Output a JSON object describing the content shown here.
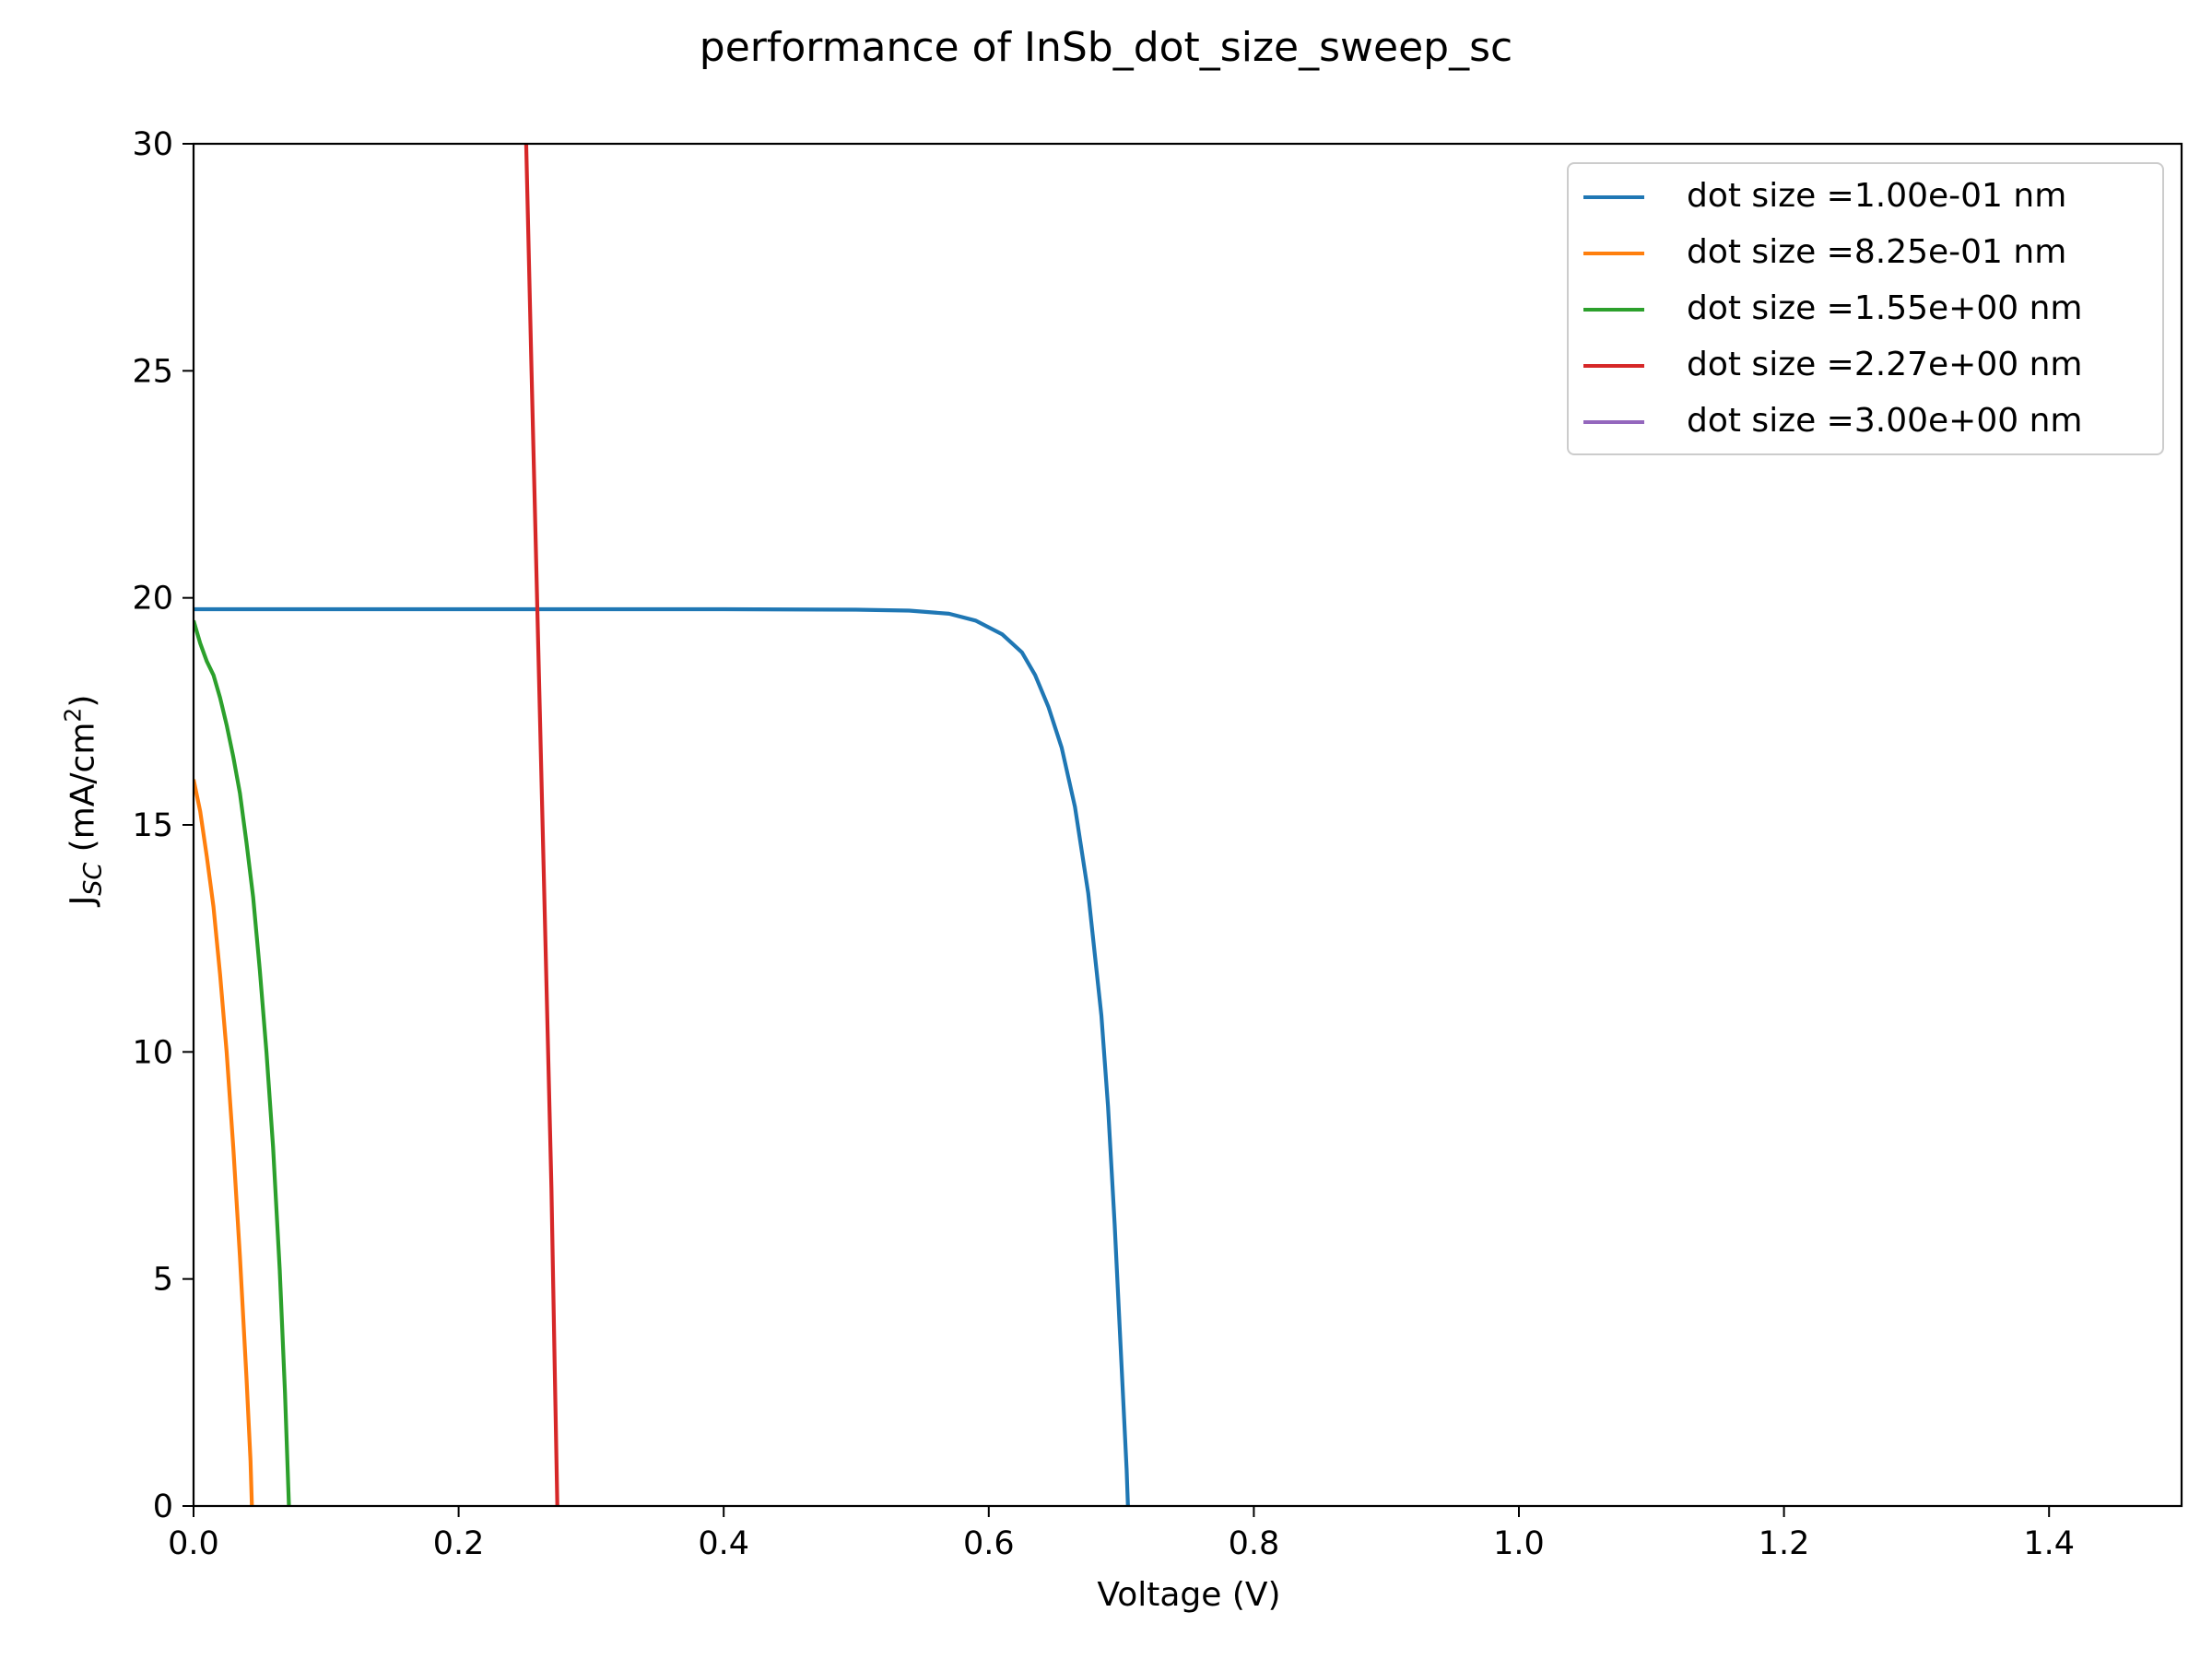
{
  "chart_data": {
    "type": "line",
    "title": "performance of InSb_dot_size_sweep_sc",
    "xlabel": "Voltage (V)",
    "ylabel": {
      "main": "J",
      "sub": "SC",
      "rest": " (mA/cm",
      "sup": "2",
      "close": ")"
    },
    "xlim": [
      0.0,
      1.5
    ],
    "ylim": [
      0,
      30
    ],
    "xticks": [
      "0.0",
      "0.2",
      "0.4",
      "0.6",
      "0.8",
      "1.0",
      "1.2",
      "1.4"
    ],
    "xtick_values": [
      0.0,
      0.2,
      0.4,
      0.6,
      0.8,
      1.0,
      1.2,
      1.4
    ],
    "yticks": [
      "0",
      "5",
      "10",
      "15",
      "20",
      "25",
      "30"
    ],
    "ytick_values": [
      0,
      5,
      10,
      15,
      20,
      25,
      30
    ],
    "grid": false,
    "legend_position": "top-right",
    "series": [
      {
        "name": "dot size =1.00e-01 nm",
        "color": "#1f77b4",
        "points": [
          [
            0.0,
            19.75
          ],
          [
            0.1,
            19.75
          ],
          [
            0.2,
            19.75
          ],
          [
            0.3,
            19.75
          ],
          [
            0.4,
            19.75
          ],
          [
            0.5,
            19.74
          ],
          [
            0.54,
            19.72
          ],
          [
            0.57,
            19.65
          ],
          [
            0.59,
            19.5
          ],
          [
            0.61,
            19.2
          ],
          [
            0.625,
            18.8
          ],
          [
            0.635,
            18.3
          ],
          [
            0.645,
            17.6
          ],
          [
            0.655,
            16.7
          ],
          [
            0.665,
            15.4
          ],
          [
            0.675,
            13.5
          ],
          [
            0.685,
            10.8
          ],
          [
            0.69,
            8.8
          ],
          [
            0.695,
            6.2
          ],
          [
            0.7,
            3.2
          ],
          [
            0.704,
            0.8
          ],
          [
            0.705,
            0.0
          ]
        ]
      },
      {
        "name": "dot size =8.25e-01 nm",
        "color": "#ff7f0e",
        "points": [
          [
            0.0,
            16.0
          ],
          [
            0.005,
            15.3
          ],
          [
            0.01,
            14.3
          ],
          [
            0.015,
            13.2
          ],
          [
            0.02,
            11.7
          ],
          [
            0.025,
            10.0
          ],
          [
            0.03,
            7.9
          ],
          [
            0.035,
            5.5
          ],
          [
            0.04,
            2.8
          ],
          [
            0.043,
            1.0
          ],
          [
            0.044,
            0.0
          ]
        ]
      },
      {
        "name": "dot size =1.55e+00 nm",
        "color": "#2ca02c",
        "points": [
          [
            0.0,
            19.5
          ],
          [
            0.005,
            19.0
          ],
          [
            0.01,
            18.6
          ],
          [
            0.015,
            18.3
          ],
          [
            0.02,
            17.8
          ],
          [
            0.025,
            17.2
          ],
          [
            0.03,
            16.5
          ],
          [
            0.035,
            15.7
          ],
          [
            0.04,
            14.6
          ],
          [
            0.045,
            13.4
          ],
          [
            0.05,
            11.8
          ],
          [
            0.055,
            10.0
          ],
          [
            0.06,
            7.9
          ],
          [
            0.065,
            5.2
          ],
          [
            0.069,
            2.5
          ],
          [
            0.072,
            0.0
          ]
        ]
      },
      {
        "name": "dot size =2.27e+00 nm",
        "color": "#d62728",
        "points": [
          [
            0.251,
            30.0
          ],
          [
            0.255,
            25.0
          ],
          [
            0.26,
            19.0
          ],
          [
            0.265,
            13.0
          ],
          [
            0.27,
            7.0
          ],
          [
            0.2725,
            3.0
          ],
          [
            0.2745,
            0.0
          ]
        ]
      },
      {
        "name": "dot size =3.00e+00 nm",
        "color": "#9467bd",
        "points": []
      }
    ]
  }
}
